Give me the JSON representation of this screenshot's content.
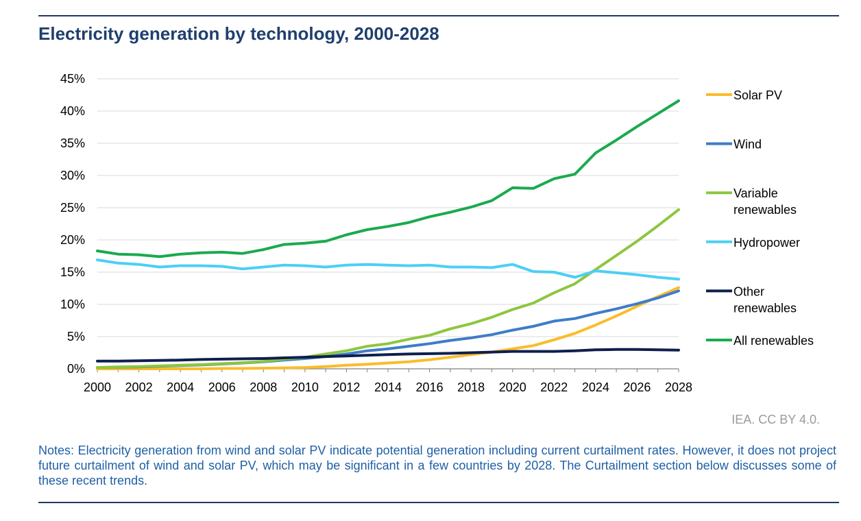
{
  "header": {
    "title": "Electricity generation by technology, 2000-2028"
  },
  "chart_data": {
    "type": "line",
    "title": "Electricity generation by technology, 2000-2028",
    "xlabel": "",
    "ylabel": "",
    "x": [
      2000,
      2001,
      2002,
      2003,
      2004,
      2005,
      2006,
      2007,
      2008,
      2009,
      2010,
      2011,
      2012,
      2013,
      2014,
      2015,
      2016,
      2017,
      2018,
      2019,
      2020,
      2021,
      2022,
      2023,
      2024,
      2025,
      2026,
      2027,
      2028
    ],
    "x_ticks": [
      "2000",
      "2002",
      "2004",
      "2006",
      "2008",
      "2010",
      "2012",
      "2014",
      "2016",
      "2018",
      "2020",
      "2022",
      "2024",
      "2026",
      "2028"
    ],
    "ylim": [
      0,
      45
    ],
    "y_ticks": [
      "0%",
      "5%",
      "10%",
      "15%",
      "20%",
      "25%",
      "30%",
      "35%",
      "40%",
      "45%"
    ],
    "y_unit": "%",
    "grid": true,
    "legend_position": "right",
    "series": [
      {
        "name": "Solar PV",
        "color": "#fbbc2a",
        "values": [
          0,
          0,
          0,
          0,
          0,
          0,
          0.05,
          0.05,
          0.1,
          0.15,
          0.2,
          0.35,
          0.55,
          0.7,
          0.9,
          1.1,
          1.4,
          1.8,
          2.2,
          2.6,
          3.1,
          3.6,
          4.5,
          5.5,
          6.8,
          8.2,
          9.7,
          11.2,
          12.6
        ]
      },
      {
        "name": "Wind",
        "color": "#3f7cc8",
        "values": [
          0.2,
          0.25,
          0.3,
          0.4,
          0.5,
          0.6,
          0.75,
          0.9,
          1.1,
          1.35,
          1.6,
          1.9,
          2.3,
          2.8,
          3.1,
          3.5,
          3.9,
          4.4,
          4.8,
          5.3,
          6.0,
          6.6,
          7.4,
          7.8,
          8.6,
          9.3,
          10.1,
          11.0,
          12.1
        ]
      },
      {
        "name": "Variable renewables",
        "color": "#8dc63f",
        "values": [
          0.2,
          0.3,
          0.35,
          0.45,
          0.55,
          0.65,
          0.8,
          0.95,
          1.15,
          1.5,
          1.8,
          2.3,
          2.8,
          3.5,
          3.9,
          4.6,
          5.2,
          6.2,
          7.0,
          8.0,
          9.2,
          10.2,
          11.8,
          13.2,
          15.4,
          17.6,
          19.8,
          22.2,
          24.7
        ]
      },
      {
        "name": "Hydropower",
        "color": "#4ccff4",
        "values": [
          16.9,
          16.4,
          16.2,
          15.8,
          16.0,
          16.0,
          15.9,
          15.5,
          15.8,
          16.1,
          16.0,
          15.8,
          16.1,
          16.2,
          16.1,
          16.0,
          16.1,
          15.8,
          15.8,
          15.7,
          16.2,
          15.1,
          15.0,
          14.2,
          15.2,
          14.9,
          14.6,
          14.2,
          13.9
        ]
      },
      {
        "name": "Other renewables",
        "color": "#0e1f4d",
        "values": [
          1.2,
          1.2,
          1.25,
          1.3,
          1.35,
          1.45,
          1.5,
          1.55,
          1.6,
          1.7,
          1.8,
          1.9,
          2.0,
          2.1,
          2.2,
          2.3,
          2.35,
          2.4,
          2.5,
          2.6,
          2.7,
          2.7,
          2.7,
          2.8,
          2.95,
          3.0,
          3.0,
          2.95,
          2.9
        ]
      },
      {
        "name": "All renewables",
        "color": "#1aaa4f",
        "values": [
          18.3,
          17.8,
          17.7,
          17.4,
          17.8,
          18.0,
          18.1,
          17.9,
          18.5,
          19.3,
          19.5,
          19.8,
          20.8,
          21.6,
          22.1,
          22.7,
          23.6,
          24.3,
          25.1,
          26.1,
          28.1,
          28.0,
          29.5,
          30.2,
          33.5,
          35.5,
          37.6,
          39.6,
          41.6
        ]
      }
    ],
    "legend": [
      {
        "lines": [
          "Solar PV"
        ]
      },
      {
        "lines": [
          "Wind"
        ]
      },
      {
        "lines": [
          "Variable",
          "renewables"
        ]
      },
      {
        "lines": [
          "Hydropower"
        ]
      },
      {
        "lines": [
          "Other",
          "renewables"
        ]
      },
      {
        "lines": [
          "All renewables"
        ]
      }
    ]
  },
  "footer": {
    "credit": "IEA. CC BY 4.0.",
    "notes": "Notes: Electricity generation from wind and solar PV indicate potential generation including current curtailment rates. However, it does not project future curtailment of wind and solar PV, which may be significant in a few countries by 2028. The Curtailment section below discusses some of these recent trends."
  }
}
